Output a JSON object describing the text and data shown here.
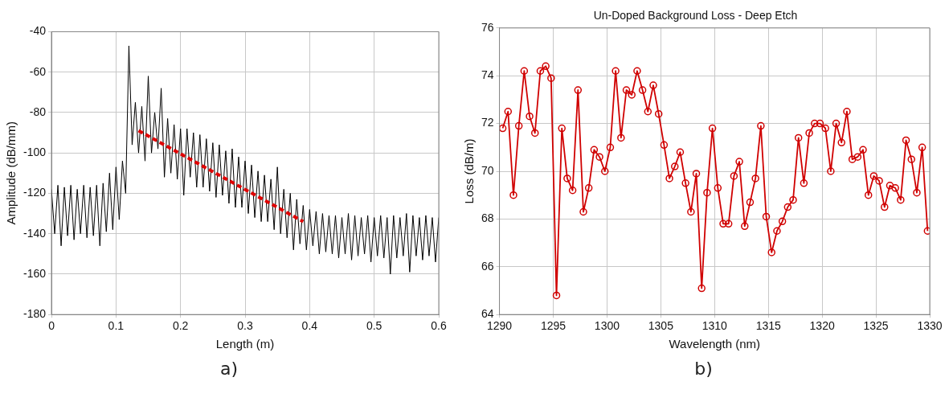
{
  "chart_data": [
    {
      "type": "line",
      "xlabel": "Length (m)",
      "ylabel": "Amplitude (dB/mm)",
      "annotations": [
        "a)"
      ],
      "xlim": [
        0,
        0.6
      ],
      "xticks": [
        0,
        0.1,
        0.2,
        0.3,
        0.4,
        0.5,
        0.6
      ],
      "ylim": [
        -180,
        -40
      ],
      "yticks": [
        -180,
        -160,
        -140,
        -120,
        -100,
        -80,
        -60,
        -40
      ],
      "grid": true,
      "legend": false,
      "marker": "none",
      "x": [
        0,
        0.005,
        0.01,
        0.015,
        0.02,
        0.025,
        0.03,
        0.035,
        0.04,
        0.045,
        0.05,
        0.055,
        0.06,
        0.065,
        0.07,
        0.075,
        0.08,
        0.085,
        0.09,
        0.095,
        0.1,
        0.105,
        0.11,
        0.115,
        0.12,
        0.125,
        0.13,
        0.135,
        0.14,
        0.145,
        0.15,
        0.155,
        0.16,
        0.165,
        0.17,
        0.175,
        0.18,
        0.185,
        0.19,
        0.195,
        0.2,
        0.205,
        0.21,
        0.215,
        0.22,
        0.225,
        0.23,
        0.235,
        0.24,
        0.245,
        0.25,
        0.255,
        0.26,
        0.265,
        0.27,
        0.275,
        0.28,
        0.285,
        0.29,
        0.295,
        0.3,
        0.305,
        0.31,
        0.315,
        0.32,
        0.325,
        0.33,
        0.335,
        0.34,
        0.345,
        0.35,
        0.355,
        0.36,
        0.365,
        0.37,
        0.375,
        0.38,
        0.385,
        0.39,
        0.395,
        0.4,
        0.405,
        0.41,
        0.415,
        0.42,
        0.425,
        0.43,
        0.435,
        0.44,
        0.445,
        0.45,
        0.455,
        0.46,
        0.465,
        0.47,
        0.475,
        0.48,
        0.485,
        0.49,
        0.495,
        0.5,
        0.505,
        0.51,
        0.515,
        0.52,
        0.525,
        0.53,
        0.535,
        0.54,
        0.545,
        0.55,
        0.555,
        0.56,
        0.565,
        0.57,
        0.575,
        0.58,
        0.585,
        0.59,
        0.595,
        0.6
      ],
      "series": [
        {
          "color": "#000000",
          "line_style": "solid",
          "values": [
            -118,
            -140,
            -116,
            -146,
            -117,
            -141,
            -116,
            -143,
            -118,
            -140,
            -116,
            -142,
            -117,
            -141,
            -116,
            -146,
            -115,
            -139,
            -110,
            -138,
            -107,
            -133,
            -104,
            -120,
            -47,
            -96,
            -75,
            -100,
            -77,
            -104,
            -62,
            -100,
            -80,
            -98,
            -68,
            -112,
            -83,
            -110,
            -86,
            -113,
            -88,
            -121,
            -88,
            -112,
            -90,
            -117,
            -91,
            -117,
            -93,
            -119,
            -95,
            -122,
            -96,
            -121,
            -99,
            -125,
            -98,
            -127,
            -102,
            -127,
            -104,
            -130,
            -106,
            -132,
            -109,
            -134,
            -111,
            -134,
            -113,
            -138,
            -107,
            -140,
            -118,
            -142,
            -120,
            -148,
            -123,
            -145,
            -126,
            -148,
            -128,
            -146,
            -129,
            -150,
            -130,
            -149,
            -131,
            -150,
            -131,
            -152,
            -132,
            -150,
            -130,
            -153,
            -131,
            -151,
            -132,
            -150,
            -131,
            -154,
            -132,
            -151,
            -131,
            -152,
            -132,
            -160,
            -131,
            -152,
            -132,
            -151,
            -130,
            -159,
            -131,
            -151,
            -132,
            -153,
            -131,
            -151,
            -132,
            -154,
            -132
          ]
        },
        {
          "type": "line",
          "color": "#e00000",
          "line_style": "dashed",
          "x": [
            0.135,
            0.39
          ],
          "values": [
            -89,
            -134
          ]
        }
      ]
    },
    {
      "type": "line",
      "title": "Un-Doped Background Loss - Deep Etch",
      "xlabel": "Wavelength (nm)",
      "ylabel": "Loss (dB/m)",
      "annotations": [
        "b)"
      ],
      "xlim": [
        1290,
        1330
      ],
      "xticks": [
        1290,
        1295,
        1300,
        1305,
        1310,
        1315,
        1320,
        1325,
        1330
      ],
      "ylim": [
        64,
        76
      ],
      "yticks": [
        64,
        66,
        68,
        70,
        72,
        74,
        76
      ],
      "grid": true,
      "legend": false,
      "marker": "circle",
      "line_style": "solid",
      "x": [
        1290.3,
        1290.8,
        1291.3,
        1291.8,
        1292.3,
        1292.8,
        1293.3,
        1293.8,
        1294.3,
        1294.8,
        1295.3,
        1295.8,
        1296.3,
        1296.8,
        1297.3,
        1297.8,
        1298.3,
        1298.8,
        1299.3,
        1299.8,
        1300.3,
        1300.8,
        1301.3,
        1301.8,
        1302.3,
        1302.8,
        1303.3,
        1303.8,
        1304.3,
        1304.8,
        1305.3,
        1305.8,
        1306.3,
        1306.8,
        1307.3,
        1307.8,
        1308.3,
        1308.8,
        1309.3,
        1309.8,
        1310.3,
        1310.8,
        1311.3,
        1311.8,
        1312.3,
        1312.8,
        1313.3,
        1313.8,
        1314.3,
        1314.8,
        1315.3,
        1315.8,
        1316.3,
        1316.8,
        1317.3,
        1317.8,
        1318.3,
        1318.8,
        1319.3,
        1319.8,
        1320.3,
        1320.8,
        1321.3,
        1321.8,
        1322.3,
        1322.8,
        1323.3,
        1323.8,
        1324.3,
        1324.8,
        1325.3,
        1325.8,
        1326.3,
        1326.8,
        1327.3,
        1327.8,
        1328.3,
        1328.8,
        1329.3,
        1329.8
      ],
      "series": [
        {
          "color": "#d00000",
          "values": [
            71.8,
            72.5,
            69.0,
            71.9,
            74.2,
            72.3,
            71.6,
            74.2,
            74.4,
            73.9,
            64.8,
            71.8,
            69.7,
            69.2,
            73.4,
            68.3,
            69.3,
            70.9,
            70.6,
            70.0,
            71.0,
            74.2,
            71.4,
            73.4,
            73.2,
            74.2,
            73.4,
            72.5,
            73.6,
            72.4,
            71.1,
            69.7,
            70.2,
            70.8,
            69.5,
            68.3,
            69.9,
            65.1,
            69.1,
            71.8,
            69.3,
            67.8,
            67.8,
            69.8,
            70.4,
            67.7,
            68.7,
            69.7,
            71.9,
            68.1,
            66.6,
            67.5,
            67.9,
            68.5,
            68.8,
            71.4,
            69.5,
            71.6,
            72.0,
            72.0,
            71.8,
            70.0,
            72.0,
            71.2,
            72.5,
            70.5,
            70.6,
            70.9,
            69.0,
            69.8,
            69.6,
            68.5,
            69.4,
            69.3,
            68.8,
            71.3,
            70.5,
            69.1,
            71.0,
            67.5
          ]
        }
      ]
    }
  ]
}
